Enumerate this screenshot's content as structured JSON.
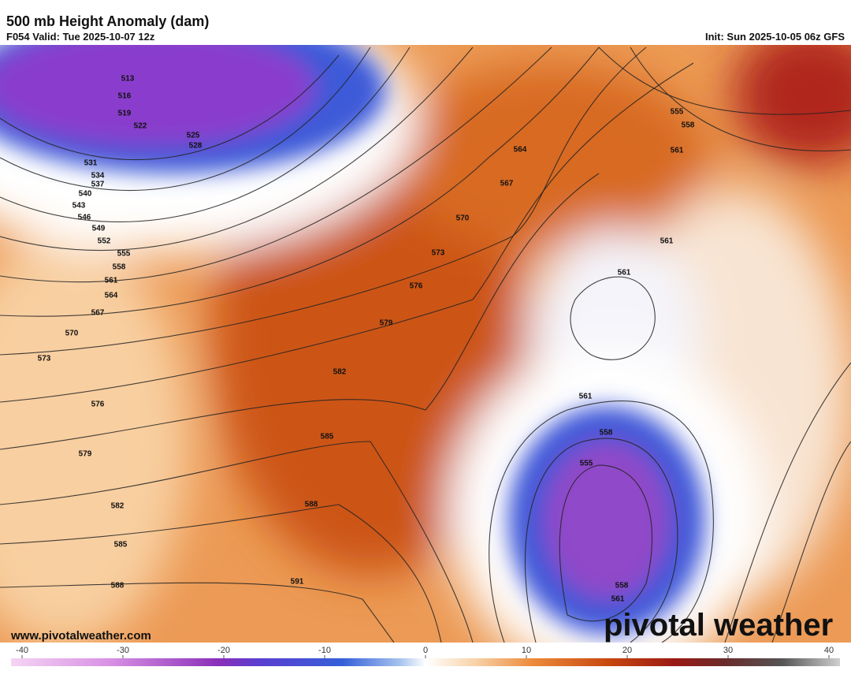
{
  "header": {
    "title": "500 mb Height Anomaly (dam)",
    "valid": "F054 Valid: Tue 2025-10-07 12z",
    "init": "Init: Sun 2025-10-05 06z GFS"
  },
  "contour_labels": [
    "513",
    "516",
    "519",
    "522",
    "525",
    "528",
    "531",
    "534",
    "537",
    "540",
    "543",
    "546",
    "549",
    "552",
    "555",
    "558",
    "561",
    "564",
    "567",
    "570",
    "573",
    "576",
    "579",
    "582",
    "585",
    "588",
    "564",
    "567",
    "570",
    "573",
    "576",
    "579",
    "582",
    "585",
    "588",
    "591",
    "555",
    "558",
    "561",
    "561",
    "561",
    "561",
    "558",
    "555",
    "558",
    "561"
  ],
  "website": "www.pivotalweather.com",
  "brand": "pivotal weather",
  "colorbar": {
    "ticks": [
      -40,
      -30,
      -20,
      -10,
      0,
      10,
      20,
      30,
      40
    ]
  }
}
